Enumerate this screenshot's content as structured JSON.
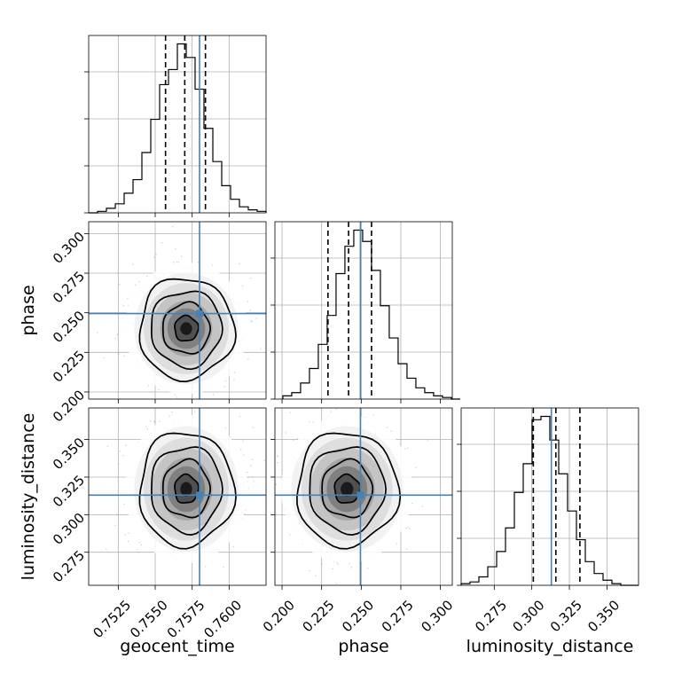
{
  "chart_data": {
    "type": "corner",
    "truth_color": "#4682b4",
    "grid": true,
    "parameters": [
      {
        "name": "geocent_time",
        "label": "geocent_time",
        "range": [
          0.7505,
          0.7625
        ],
        "ticks": [
          0.7525,
          0.755,
          0.7575,
          0.76
        ],
        "tick_labels": [
          "0.7525",
          "0.7550",
          "0.7575",
          "0.7600"
        ],
        "truth": 0.758,
        "quantiles": [
          0.7557,
          0.757,
          0.7584
        ],
        "hist_edges_start": 0.7505,
        "hist_bin_width": 0.0006,
        "hist_counts": [
          0,
          1,
          3,
          6,
          13,
          22,
          40,
          62,
          85,
          95,
          112,
          103,
          82,
          56,
          34,
          18,
          9,
          4,
          2,
          1
        ]
      },
      {
        "name": "phase",
        "label": "phase",
        "range": [
          0.1955,
          0.3075
        ],
        "ticks": [
          0.2,
          0.225,
          0.25,
          0.275,
          0.3
        ],
        "tick_labels": [
          "0.200",
          "0.225",
          "0.250",
          "0.275",
          "0.300"
        ],
        "truth": 0.2495,
        "quantiles": [
          0.229,
          0.242,
          0.2565
        ],
        "hist_edges_start": 0.2005,
        "hist_bin_width": 0.0056,
        "hist_counts": [
          2,
          4,
          10,
          19,
          34,
          52,
          78,
          95,
          105,
          98,
          80,
          58,
          38,
          22,
          13,
          7,
          4,
          2,
          1,
          0
        ]
      },
      {
        "name": "luminosity_distance",
        "label": "luminosity_distance",
        "range": [
          0.253,
          0.371
        ],
        "ticks": [
          0.275,
          0.3,
          0.325,
          0.35
        ],
        "tick_labels": [
          "0.275",
          "0.300",
          "0.325",
          "0.350"
        ],
        "truth": 0.313,
        "quantiles": [
          0.301,
          0.316,
          0.332
        ],
        "hist_edges_start": 0.253,
        "hist_bin_width": 0.0059,
        "hist_counts": [
          1,
          2,
          5,
          11,
          20,
          34,
          55,
          72,
          98,
          100,
          86,
          66,
          44,
          27,
          14,
          7,
          3,
          1,
          0,
          0
        ]
      }
    ],
    "pairs": [
      {
        "x": "geocent_time",
        "y": "phase",
        "center": [
          0.7571,
          0.24
        ],
        "sigma": [
          0.0016,
          0.016
        ],
        "truth": [
          0.758,
          0.2495
        ]
      },
      {
        "x": "geocent_time",
        "y": "luminosity_distance",
        "center": [
          0.7571,
          0.317
        ],
        "sigma": [
          0.0016,
          0.019
        ],
        "truth": [
          0.758,
          0.313
        ]
      },
      {
        "x": "phase",
        "y": "luminosity_distance",
        "center": [
          0.241,
          0.317
        ],
        "sigma": [
          0.016,
          0.019
        ],
        "truth": [
          0.2495,
          0.313
        ]
      }
    ]
  }
}
